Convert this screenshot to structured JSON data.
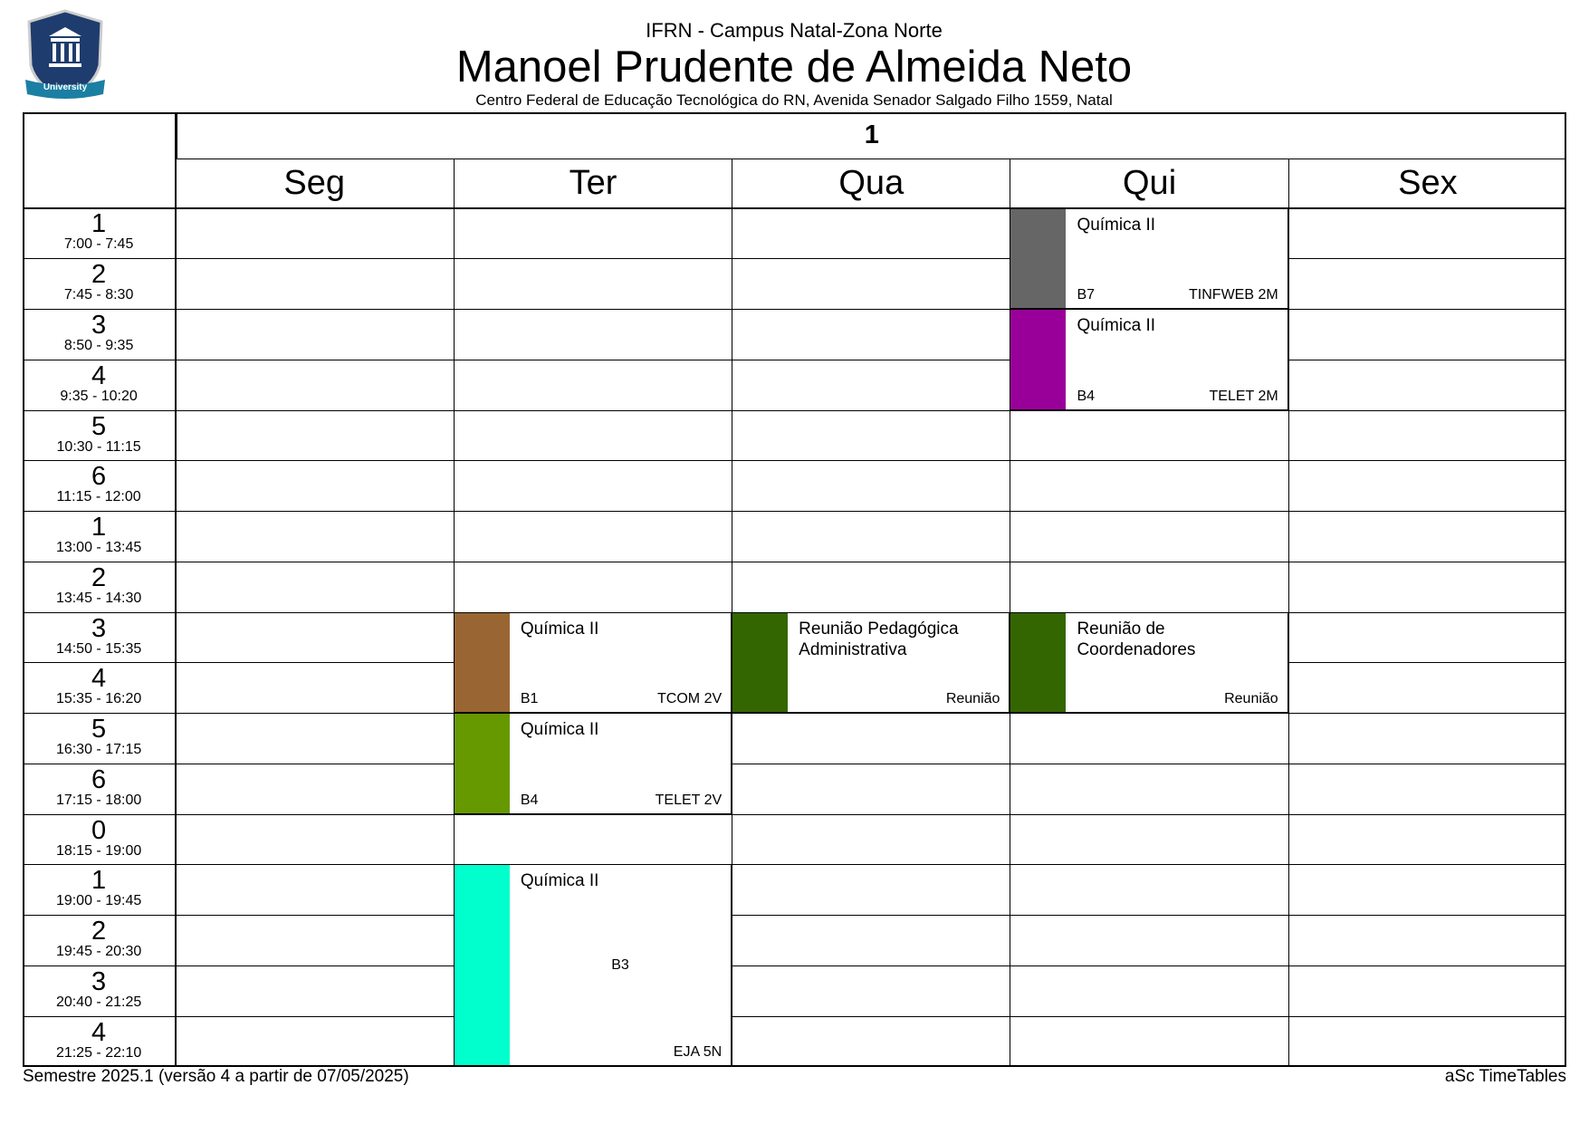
{
  "header": {
    "school": "IFRN - Campus Natal-Zona Norte",
    "teacher": "Manoel Prudente de Almeida Neto",
    "address": "Centro Federal de Educação Tecnológica do RN, Avenida Senador Salgado Filho 1559, Natal",
    "logo_text": "University"
  },
  "timetable": {
    "week": "1",
    "periods": [
      {
        "number": "1",
        "time": "7:00 - 7:45"
      },
      {
        "number": "2",
        "time": "7:45 - 8:30"
      },
      {
        "number": "3",
        "time": "8:50 - 9:35"
      },
      {
        "number": "4",
        "time": "9:35 - 10:20"
      },
      {
        "number": "5",
        "time": "10:30 - 11:15"
      },
      {
        "number": "6",
        "time": "11:15 - 12:00"
      },
      {
        "number": "1",
        "time": "13:00 - 13:45"
      },
      {
        "number": "2",
        "time": "13:45 - 14:30"
      },
      {
        "number": "3",
        "time": "14:50 - 15:35"
      },
      {
        "number": "4",
        "time": "15:35 - 16:20"
      },
      {
        "number": "5",
        "time": "16:30 - 17:15"
      },
      {
        "number": "6",
        "time": "17:15 - 18:00"
      },
      {
        "number": "0",
        "time": "18:15 - 19:00"
      },
      {
        "number": "1",
        "time": "19:00 - 19:45"
      },
      {
        "number": "2",
        "time": "19:45 - 20:30"
      },
      {
        "number": "3",
        "time": "20:40 - 21:25"
      },
      {
        "number": "4",
        "time": "21:25 - 22:10"
      }
    ],
    "days": [
      {
        "name": "Seg",
        "lessons": []
      },
      {
        "name": "Ter",
        "lessons": [
          {
            "start": 8,
            "span": 2,
            "color": "#996633",
            "subject": "Química II",
            "room": "B1",
            "class": "TCOM 2V"
          },
          {
            "start": 10,
            "span": 2,
            "color": "#669900",
            "subject": "Química II",
            "room": "B4",
            "class": "TELET 2V"
          },
          {
            "start": 13,
            "span": 4,
            "color": "#00ffcc",
            "subject": "Química II",
            "room": "B3",
            "class": "EJA 5N"
          }
        ]
      },
      {
        "name": "Qua",
        "lessons": [
          {
            "start": 8,
            "span": 2,
            "color": "#336600",
            "subject": "Reunião Pedagógica Administrativa",
            "class": "Reunião"
          }
        ]
      },
      {
        "name": "Qui",
        "lessons": [
          {
            "start": 0,
            "span": 2,
            "color": "#666666",
            "subject": "Química II",
            "room": "B7",
            "class": "TINFWEB 2M"
          },
          {
            "start": 2,
            "span": 2,
            "color": "#990099",
            "subject": "Química II",
            "room": "B4",
            "class": "TELET 2M"
          },
          {
            "start": 8,
            "span": 2,
            "color": "#336600",
            "subject": "Reunião de Coordenadores",
            "class": "Reunião"
          }
        ]
      },
      {
        "name": "Sex",
        "lessons": []
      }
    ]
  },
  "footer": {
    "left": "Semestre 2025.1 (versão 4 a partir de 07/05/2025)",
    "right": "aSc TimeTables"
  }
}
